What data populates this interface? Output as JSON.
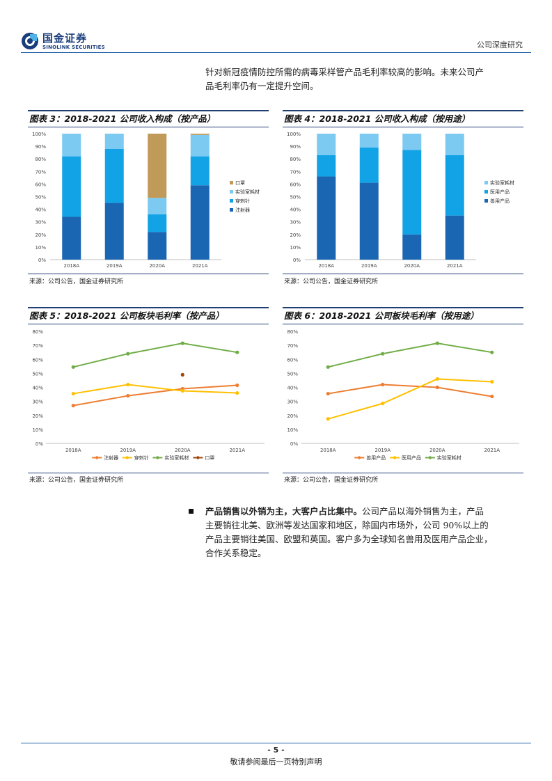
{
  "header": {
    "brand_cn": "国金证券",
    "brand_en": "SINOLINK SECURITIES",
    "section": "公司深度研究"
  },
  "intro": {
    "line1": "针对新冠疫情防控所需的病毒采样管产品毛利率较高的影响。未来公司产",
    "line2": "品毛利率仍有一定提升空间。"
  },
  "figures": {
    "fig3": {
      "title": "图表 3：2018-2021 公司收入构成（按产品）",
      "source": "来源：公司公告，国金证券研究所"
    },
    "fig4": {
      "title": "图表 4：2018-2021 公司收入构成（按用途）",
      "source": "来源：公司公告，国金证券研究所"
    },
    "fig5": {
      "title": "图表 5：2018-2021 公司板块毛利率（按产品）",
      "source": "来源：公司公告，国金证券研究所"
    },
    "fig6": {
      "title": "图表 6：2018-2021 公司板块毛利率（按用途）",
      "source": "来源：公司公告，国金证券研究所"
    }
  },
  "chart_data": [
    {
      "id": "fig3",
      "type": "bar",
      "stacked": true,
      "categories": [
        "2018A",
        "2019A",
        "2020A",
        "2021A"
      ],
      "y_ticks": [
        "0%",
        "10%",
        "20%",
        "30%",
        "40%",
        "50%",
        "60%",
        "70%",
        "80%",
        "90%",
        "100%"
      ],
      "ylim": [
        0,
        100
      ],
      "legend_position": "right",
      "series": [
        {
          "name": "注射器",
          "color": "#1a66b3",
          "values": [
            34,
            45,
            22,
            59
          ]
        },
        {
          "name": "穿刺针",
          "color": "#12a3e6",
          "values": [
            48,
            43,
            14,
            23
          ]
        },
        {
          "name": "实验室耗材",
          "color": "#7ccaf2",
          "values": [
            18,
            12,
            13,
            17
          ]
        },
        {
          "name": "口罩",
          "color": "#c09a58",
          "values": [
            0,
            0,
            51,
            1
          ]
        }
      ]
    },
    {
      "id": "fig4",
      "type": "bar",
      "stacked": true,
      "categories": [
        "2018A",
        "2019A",
        "2020A",
        "2021A"
      ],
      "y_ticks": [
        "0%",
        "10%",
        "20%",
        "30%",
        "40%",
        "50%",
        "60%",
        "70%",
        "80%",
        "90%",
        "100%"
      ],
      "ylim": [
        0,
        100
      ],
      "legend_position": "right",
      "series": [
        {
          "name": "兽用产品",
          "color": "#1a66b3",
          "values": [
            66,
            61,
            20,
            35
          ]
        },
        {
          "name": "医用产品",
          "color": "#12a3e6",
          "values": [
            17,
            28,
            67,
            48
          ]
        },
        {
          "name": "实验室耗材",
          "color": "#7ccaf2",
          "values": [
            17,
            11,
            13,
            17
          ]
        }
      ]
    },
    {
      "id": "fig5",
      "type": "line",
      "categories": [
        "2018A",
        "2019A",
        "2020A",
        "2021A"
      ],
      "y_ticks": [
        "0%",
        "10%",
        "20%",
        "30%",
        "40%",
        "50%",
        "60%",
        "70%",
        "80%"
      ],
      "ylim": [
        0,
        80
      ],
      "legend_position": "bottom",
      "series": [
        {
          "name": "注射器",
          "color": "#ed7d31",
          "values": [
            27,
            34,
            39,
            41.5
          ]
        },
        {
          "name": "穿刺针",
          "color": "#ffc000",
          "values": [
            35.5,
            42,
            37.5,
            36
          ]
        },
        {
          "name": "实验室耗材",
          "color": "#70ad47",
          "values": [
            54.5,
            64,
            71.5,
            65
          ]
        },
        {
          "name": "口罩",
          "color": "#9e480e",
          "values": [
            null,
            null,
            49,
            null
          ]
        }
      ]
    },
    {
      "id": "fig6",
      "type": "line",
      "categories": [
        "2018A",
        "2019A",
        "2020A",
        "2021A"
      ],
      "y_ticks": [
        "0%",
        "10%",
        "20%",
        "30%",
        "40%",
        "50%",
        "60%",
        "70%",
        "80%"
      ],
      "ylim": [
        0,
        80
      ],
      "legend_position": "bottom",
      "series": [
        {
          "name": "兽用产品",
          "color": "#ed7d31",
          "values": [
            35.5,
            42,
            40,
            33.5
          ]
        },
        {
          "name": "医用产品",
          "color": "#ffc000",
          "values": [
            17.5,
            28.5,
            46,
            44
          ]
        },
        {
          "name": "实验室耗材",
          "color": "#70ad47",
          "values": [
            54.5,
            64,
            71.5,
            65
          ]
        }
      ]
    }
  ],
  "bullet": {
    "bold": "产品销售以外销为主，大客户占比集中。",
    "line1_rest": "公司产品以海外销售为主，产品",
    "line2": "主要销往北美、欧洲等发达国家和地区，除国内市场外，公司 90%以上的",
    "line3": "产品主要销往美国、欧盟和英国。客户多为全球知名兽用及医用产品企业，",
    "line4": "合作关系稳定。"
  },
  "footer": {
    "page": "- 5 -",
    "disclaimer": "敬请参阅最后一页特别声明"
  }
}
